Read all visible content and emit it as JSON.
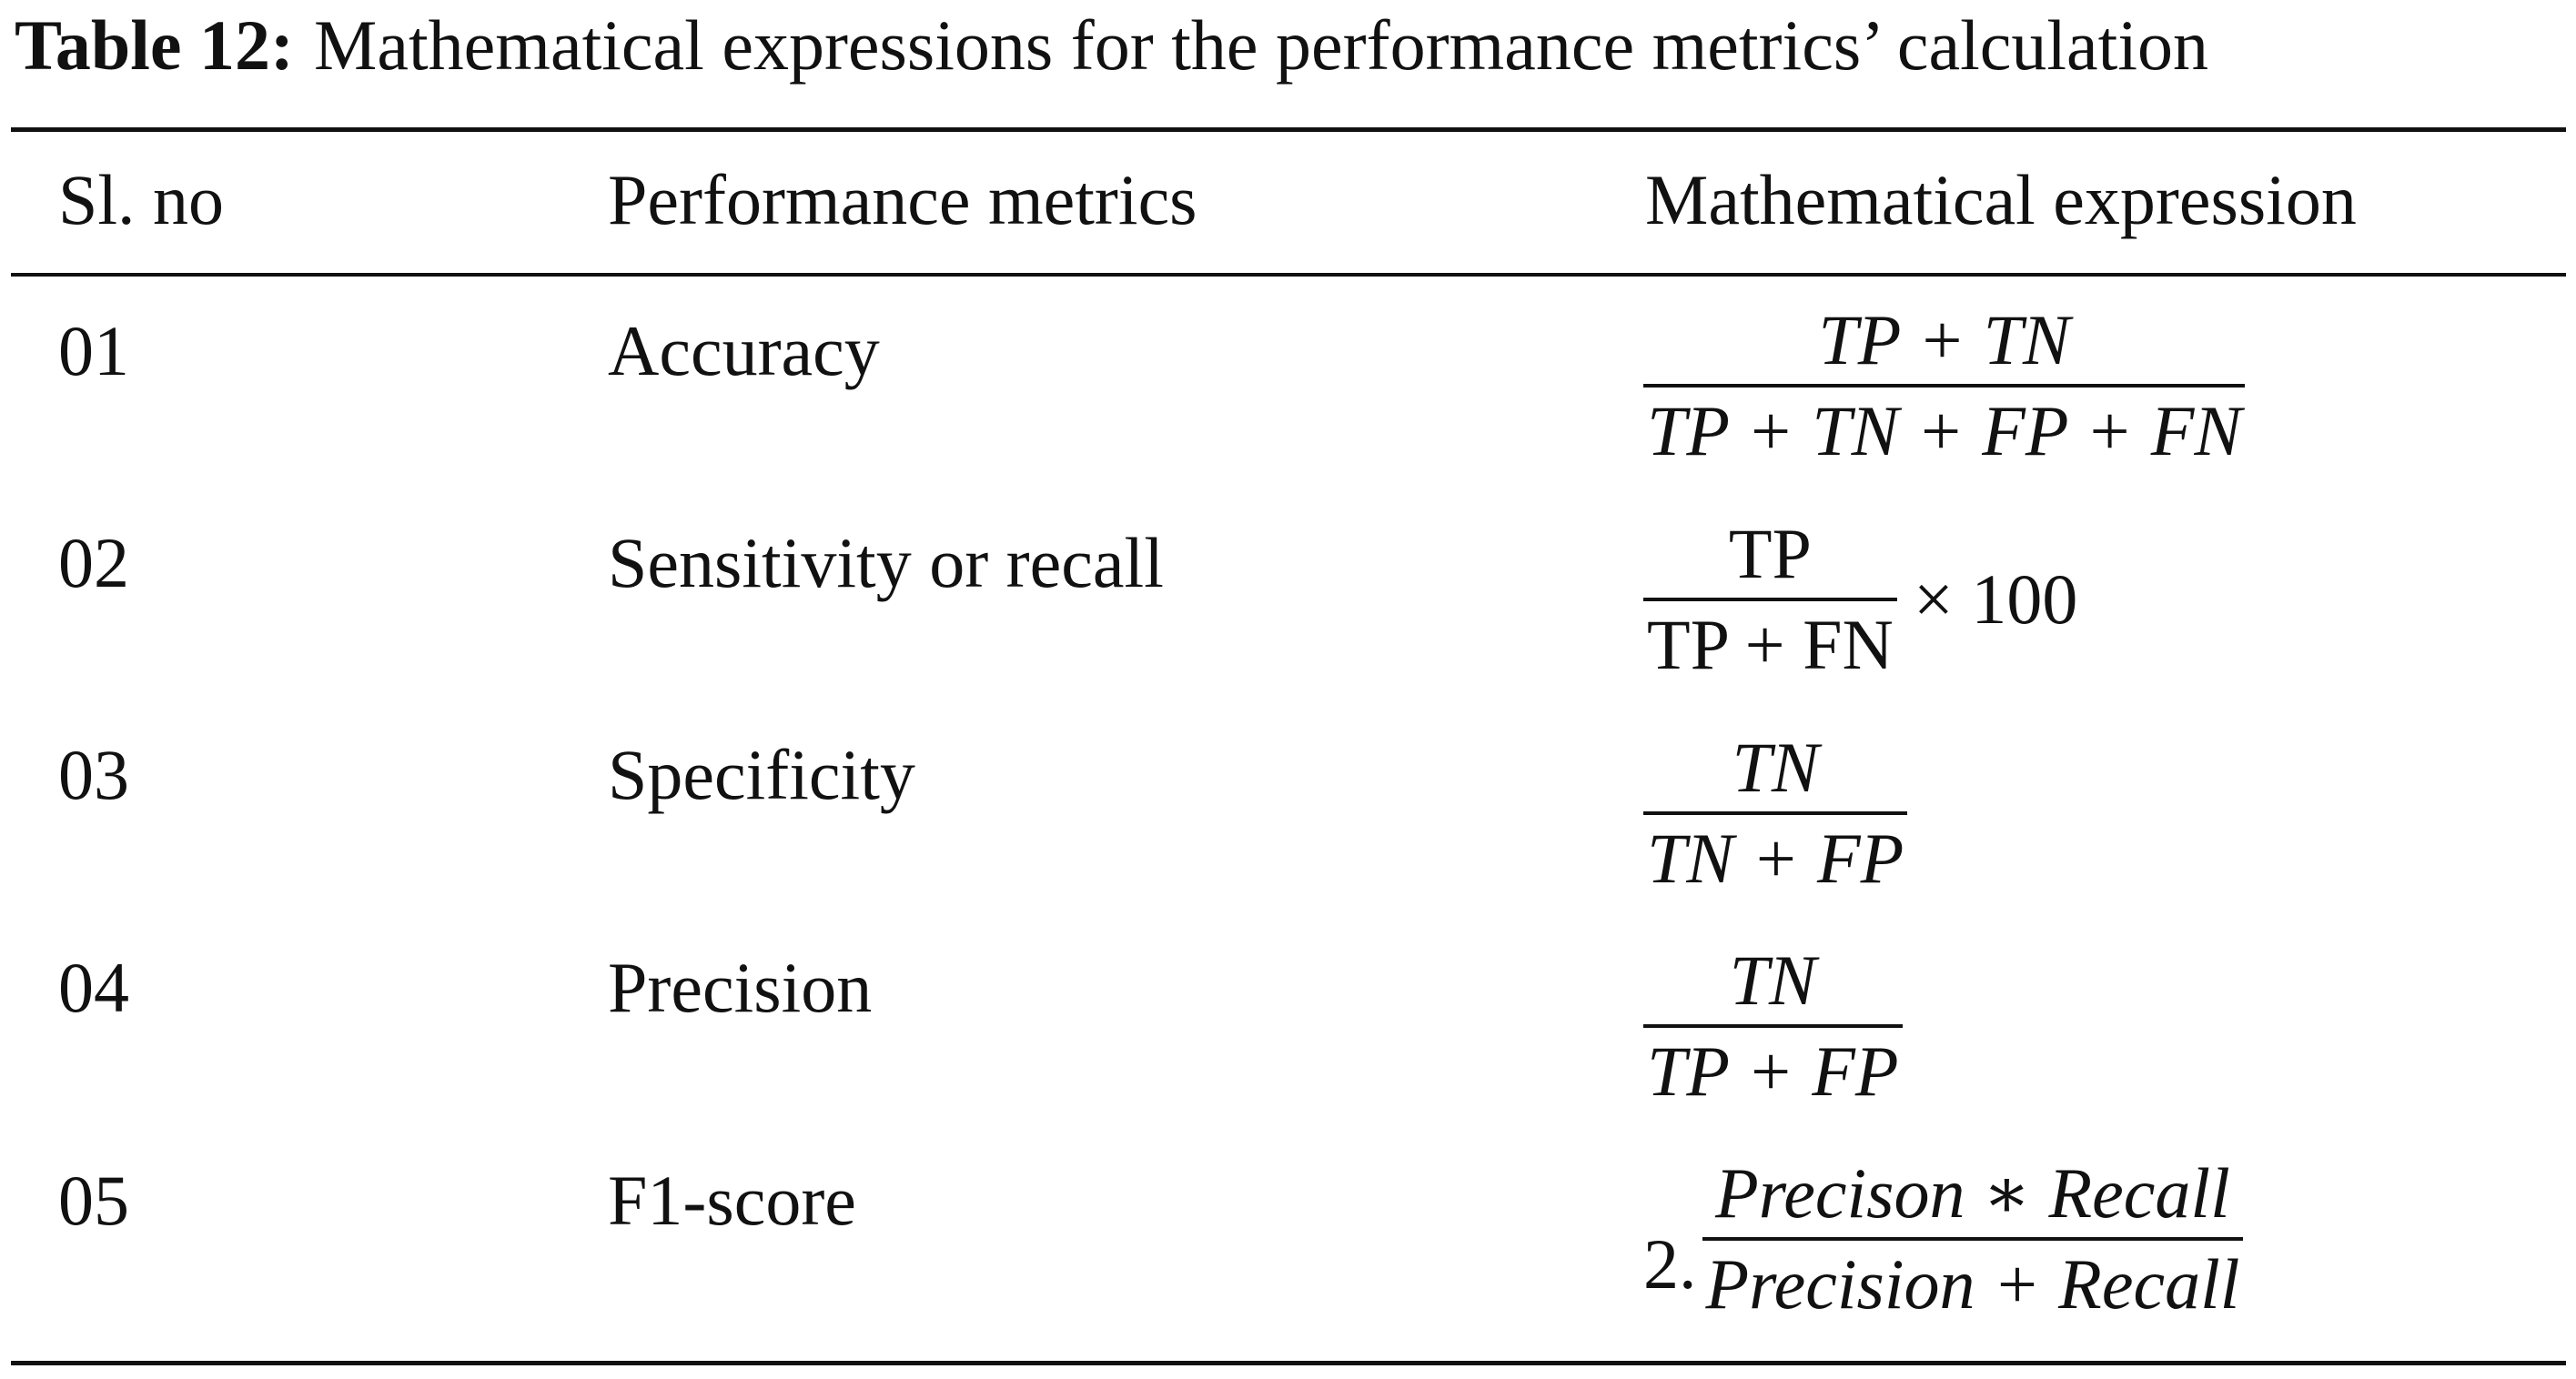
{
  "caption": {
    "label": "Table 12:",
    "text": "Mathematical expressions for the performance metrics’ calculation"
  },
  "table": {
    "headers": [
      "Sl. no",
      "Performance metrics",
      "Mathematical expression"
    ],
    "rows": [
      {
        "sl": "01",
        "metric": "Accuracy",
        "numerator": "TP + TN",
        "denominator": "TP + TN + FP + FN",
        "prefix": "",
        "suffix": ""
      },
      {
        "sl": "02",
        "metric": "Sensitivity or recall",
        "numerator": "TP",
        "denominator": "TP + FN",
        "prefix": "",
        "suffix": "× 100"
      },
      {
        "sl": "03",
        "metric": "Specificity",
        "numerator": "TN",
        "denominator": "TN + FP",
        "prefix": "",
        "suffix": ""
      },
      {
        "sl": "04",
        "metric": "Precision",
        "numerator": "TN",
        "denominator": "TP + FP",
        "prefix": "",
        "suffix": ""
      },
      {
        "sl": "05",
        "metric": "F1-score",
        "numerator": "Precison ∗ Recall",
        "denominator": "Precision + Recall",
        "prefix": "2.",
        "suffix": ""
      }
    ]
  }
}
